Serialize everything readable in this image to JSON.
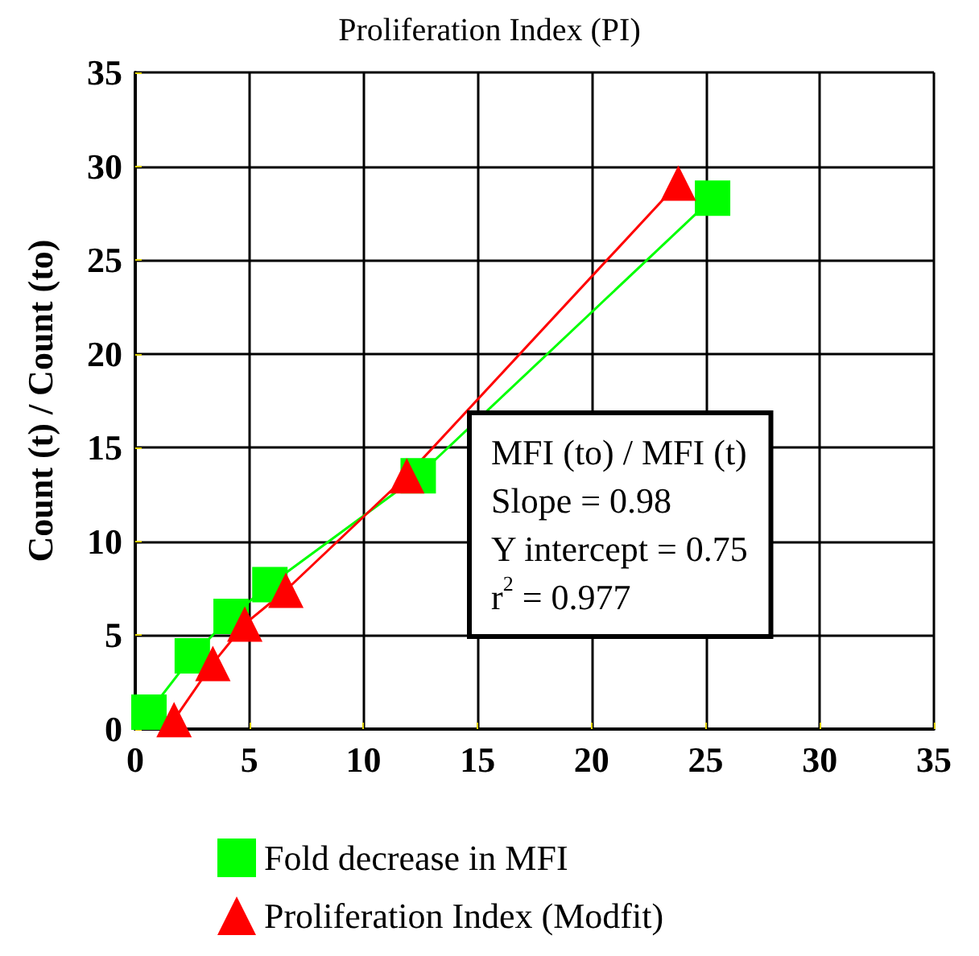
{
  "chart_data": {
    "type": "line",
    "title": "Proliferation Index (PI)",
    "ylabel": "Count (t) / Count (to)",
    "xlim": [
      0,
      35
    ],
    "xticks": [
      0,
      5,
      10,
      15,
      20,
      25,
      30,
      35
    ],
    "ylim": [
      0,
      35
    ],
    "yticks": [
      0,
      5,
      10,
      15,
      20,
      25,
      30,
      35
    ],
    "grid": true,
    "legend": "bottom",
    "series": [
      {
        "name": "Fold decrease in MFI",
        "color": "#00ff00",
        "marker": "square",
        "x": [
          0.6,
          2.5,
          4.2,
          5.9,
          12.4,
          25.3
        ],
        "values": [
          0.9,
          3.9,
          6.0,
          7.7,
          13.5,
          28.3
        ]
      },
      {
        "name": "Proliferation Index (Modfit)",
        "color": "#ff0000",
        "marker": "triangle",
        "x": [
          1.7,
          3.4,
          4.8,
          6.6,
          11.9,
          23.8
        ],
        "values": [
          0.5,
          3.5,
          5.6,
          7.4,
          13.5,
          29.1
        ]
      }
    ],
    "annotations": [
      "MFI (to) / MFI (t)\nSlope = 0.98\nY intercept = 0.75\nr$^{2}$ = 0.977"
    ]
  }
}
